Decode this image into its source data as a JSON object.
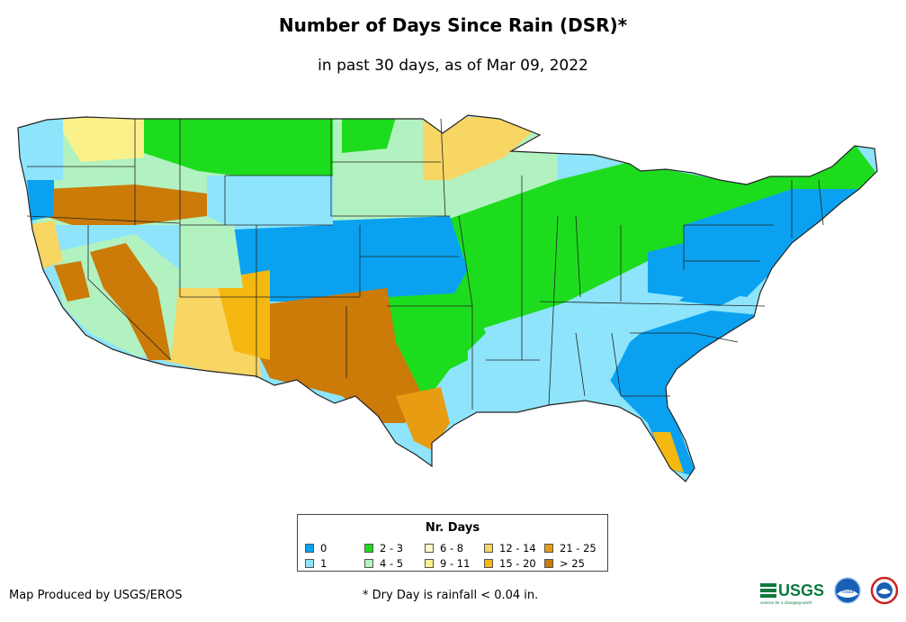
{
  "title": "Number of Days Since Rain (DSR)*",
  "subtitle": "in past 30 days, as of Mar 09, 2022",
  "legend": {
    "title": "Nr. Days",
    "items": [
      {
        "label": "0",
        "color": "#0aa2f0"
      },
      {
        "label": "1",
        "color": "#8ee4fb"
      },
      {
        "label": "2 - 3",
        "color": "#1ddc1d"
      },
      {
        "label": "4 - 5",
        "color": "#b2f2c0"
      },
      {
        "label": "6 - 8",
        "color": "#fdfbc6"
      },
      {
        "label": "9 - 11",
        "color": "#fbf18b"
      },
      {
        "label": "12 - 14",
        "color": "#f7d664"
      },
      {
        "label": "15 - 20",
        "color": "#f5b810"
      },
      {
        "label": "21 - 25",
        "color": "#e89c12"
      },
      {
        "label": "> 25",
        "color": "#cc7a08"
      }
    ]
  },
  "footer": {
    "producer": "Map Produced by USGS/EROS",
    "note": "* Dry Day is rainfall < 0.04 in."
  },
  "logos": {
    "usgs_text": "USGS",
    "usgs_tagline": "science for a changing world",
    "noaa_text": "noaa"
  }
}
